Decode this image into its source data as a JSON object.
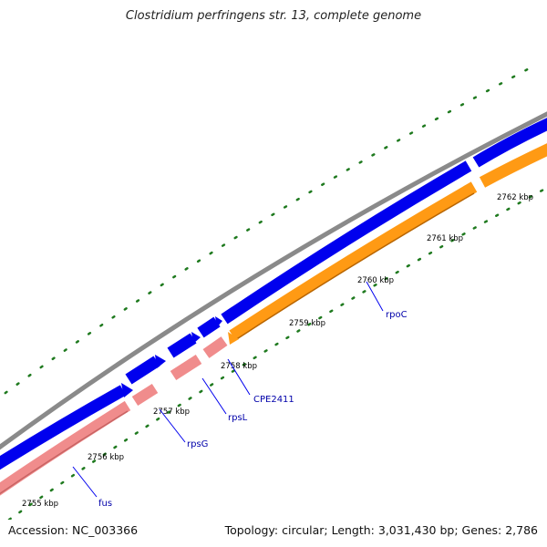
{
  "title": "Clostridium perfringens str. 13, complete genome",
  "footer": {
    "accession": "Accession: NC_003366",
    "summary": "Topology: circular; Length: 3,031,430 bp; Genes: 2,786"
  },
  "map": {
    "kbp_ticks": [
      {
        "label": "2755 kbp",
        "kbp": 2755
      },
      {
        "label": "2756 kbp",
        "kbp": 2756
      },
      {
        "label": "2757 kbp",
        "kbp": 2757
      },
      {
        "label": "2758 kbp",
        "kbp": 2758
      },
      {
        "label": "2759 kbp",
        "kbp": 2759
      },
      {
        "label": "2760 kbp",
        "kbp": 2760
      },
      {
        "label": "2761 kbp",
        "kbp": 2761
      },
      {
        "label": "2762 kbp",
        "kbp": 2762
      }
    ],
    "genes": [
      {
        "name": "fus",
        "strand": "forward",
        "color": "#0000ee"
      },
      {
        "name": "rpsG",
        "strand": "forward",
        "color": "#0000ee"
      },
      {
        "name": "rpsL",
        "strand": "forward",
        "color": "#0000ee"
      },
      {
        "name": "CPE2411",
        "strand": "forward",
        "color": "#0000ee"
      },
      {
        "name": "rpoC",
        "strand": "forward",
        "color": "#0000ee"
      }
    ],
    "colors": {
      "backbone": "#888888",
      "forward_cds": "#0000ee",
      "rna_track": "#f08c8c",
      "orange_track": "#ff9a14",
      "tick": "#1f7a1f",
      "gene_label": "#0000aa"
    }
  }
}
